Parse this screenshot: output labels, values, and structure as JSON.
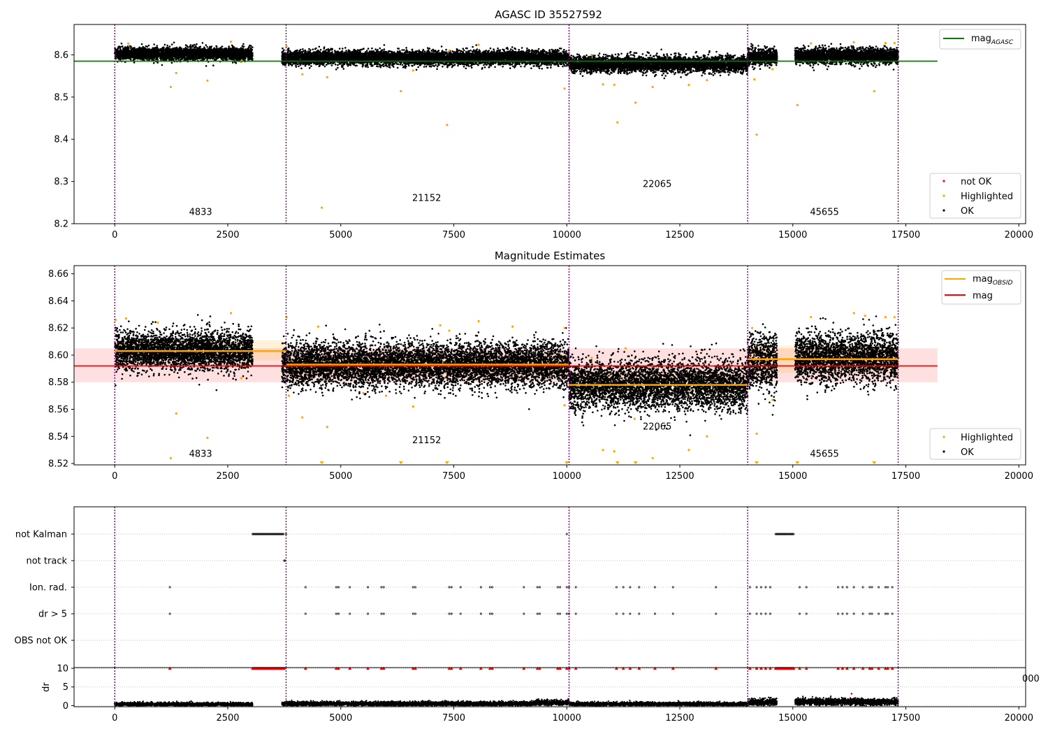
{
  "chart_data": [
    {
      "type": "scatter",
      "title": "AGASC ID 35527592",
      "xlabel": "",
      "ylabel": "",
      "xlim": [
        -900,
        20150
      ],
      "ylim": [
        8.2,
        8.672
      ],
      "xticks": [
        0,
        2500,
        5000,
        7500,
        10000,
        12500,
        15000,
        17500,
        20000
      ],
      "yticks": [
        8.2,
        8.3,
        8.4,
        8.5,
        8.6
      ],
      "ytick_labels": [
        "8.2",
        "8.3",
        "8.4",
        "8.5",
        "8.6"
      ],
      "grid": false,
      "lines": [
        {
          "name": "mag_AGASC",
          "color": "#008000",
          "x": [
            -900,
            18200
          ],
          "y": [
            8.585,
            8.585
          ]
        }
      ],
      "obsid_boundaries": [
        0,
        3790,
        10050,
        14000,
        17330
      ],
      "obsid_labels": [
        {
          "label": "4833",
          "x": 1900,
          "y": 8.221
        },
        {
          "label": "21152",
          "x": 6900,
          "y": 8.254
        },
        {
          "label": "22065",
          "x": 12000,
          "y": 8.287
        },
        {
          "label": "45655",
          "x": 15700,
          "y": 8.221
        }
      ],
      "dense_segments": [
        {
          "x0": 0,
          "x1": 3050,
          "center": 8.603,
          "spread": 0.007
        },
        {
          "x0": 3700,
          "x1": 10050,
          "center": 8.593,
          "spread": 0.008
        },
        {
          "x0": 10050,
          "x1": 14000,
          "center": 8.578,
          "spread": 0.009
        },
        {
          "x0": 14000,
          "x1": 14650,
          "center": 8.595,
          "spread": 0.01
        },
        {
          "x0": 15050,
          "x1": 17330,
          "center": 8.598,
          "spread": 0.009
        }
      ],
      "highlighted_points": [
        [
          1240,
          8.524
        ],
        [
          1360,
          8.557
        ],
        [
          2050,
          8.539
        ],
        [
          2800,
          8.583
        ],
        [
          300,
          8.627
        ],
        [
          2570,
          8.631
        ],
        [
          3800,
          8.62
        ],
        [
          4150,
          8.554
        ],
        [
          4580,
          8.238
        ],
        [
          4700,
          8.547
        ],
        [
          6330,
          8.514
        ],
        [
          7350,
          8.434
        ],
        [
          7400,
          8.61
        ],
        [
          6600,
          8.563
        ],
        [
          8050,
          8.624
        ],
        [
          9950,
          8.52
        ],
        [
          10050,
          8.605
        ],
        [
          10550,
          8.6
        ],
        [
          10800,
          8.53
        ],
        [
          11050,
          8.529
        ],
        [
          11120,
          8.44
        ],
        [
          11520,
          8.487
        ],
        [
          11900,
          8.524
        ],
        [
          12700,
          8.529
        ],
        [
          13100,
          8.54
        ],
        [
          14150,
          8.542
        ],
        [
          14200,
          8.411
        ],
        [
          14550,
          8.566
        ],
        [
          15100,
          8.481
        ],
        [
          15400,
          8.627
        ],
        [
          16350,
          8.63
        ],
        [
          16800,
          8.514
        ],
        [
          17050,
          8.628
        ],
        [
          17250,
          8.628
        ]
      ],
      "legend": {
        "placement": "top-right and bottom-right",
        "entries": [
          {
            "name": "mag_AGASC",
            "color": "#008000",
            "kind": "line"
          },
          {
            "name": "not OK",
            "color": "#ff0000",
            "kind": "point"
          },
          {
            "name": "Highlighted",
            "color": "#ffa500",
            "kind": "point"
          },
          {
            "name": "OK",
            "color": "#000000",
            "kind": "point"
          }
        ]
      }
    },
    {
      "type": "scatter",
      "title": "Magnitude Estimates",
      "xlabel": "",
      "ylabel": "",
      "xlim": [
        -900,
        20150
      ],
      "ylim": [
        8.519,
        8.666
      ],
      "xticks": [
        0,
        2500,
        5000,
        7500,
        10000,
        12500,
        15000,
        17500,
        20000
      ],
      "yticks": [
        8.52,
        8.54,
        8.56,
        8.58,
        8.6,
        8.62,
        8.64,
        8.66
      ],
      "ytick_labels": [
        "8.52",
        "8.54",
        "8.56",
        "8.58",
        "8.60",
        "8.62",
        "8.64",
        "8.66"
      ],
      "grid": false,
      "lines": [
        {
          "name": "mag",
          "color": "#ff0000",
          "x": [
            -900,
            18200
          ],
          "y": [
            8.592,
            8.592
          ]
        }
      ],
      "mag_band": {
        "color": "#ff0000",
        "x": [
          -900,
          18200
        ],
        "y": [
          8.58,
          8.605
        ]
      },
      "obsid_levels": [
        {
          "x0": 0,
          "x1": 3790,
          "mag": 8.603,
          "band": [
            8.596,
            8.611
          ]
        },
        {
          "x0": 3790,
          "x1": 10050,
          "mag": 8.593,
          "band": [
            8.585,
            8.601
          ]
        },
        {
          "x0": 10050,
          "x1": 14000,
          "mag": 8.578,
          "band": [
            8.569,
            8.587
          ]
        },
        {
          "x0": 14000,
          "x1": 17330,
          "mag": 8.597,
          "band": [
            8.587,
            8.607
          ]
        }
      ],
      "obsid_boundaries": [
        0,
        3790,
        10050,
        14000,
        17330
      ],
      "obsid_labels": [
        {
          "label": "4833",
          "x": 1900,
          "y": 8.525
        },
        {
          "label": "21152",
          "x": 6900,
          "y": 8.535
        },
        {
          "label": "22065",
          "x": 12000,
          "y": 8.545
        },
        {
          "label": "45655",
          "x": 15700,
          "y": 8.525
        }
      ],
      "dense_segments": [
        {
          "x0": 0,
          "x1": 3050,
          "center": 8.603,
          "spread": 0.007
        },
        {
          "x0": 3700,
          "x1": 10050,
          "center": 8.593,
          "spread": 0.008
        },
        {
          "x0": 10050,
          "x1": 14000,
          "center": 8.578,
          "spread": 0.009
        },
        {
          "x0": 14000,
          "x1": 14650,
          "center": 8.595,
          "spread": 0.01
        },
        {
          "x0": 15050,
          "x1": 17330,
          "center": 8.598,
          "spread": 0.009
        }
      ],
      "highlighted_points": [
        [
          20,
          8.626
        ],
        [
          250,
          8.627
        ],
        [
          950,
          8.624
        ],
        [
          1240,
          8.524
        ],
        [
          1360,
          8.557
        ],
        [
          2050,
          8.539
        ],
        [
          2570,
          8.631
        ],
        [
          2800,
          8.583
        ],
        [
          3800,
          8.628
        ],
        [
          3850,
          8.57
        ],
        [
          4150,
          8.554
        ],
        [
          4500,
          8.621
        ],
        [
          4700,
          8.547
        ],
        [
          5500,
          8.572
        ],
        [
          6000,
          8.57
        ],
        [
          6600,
          8.562
        ],
        [
          7200,
          8.622
        ],
        [
          7400,
          8.618
        ],
        [
          8050,
          8.625
        ],
        [
          8800,
          8.621
        ],
        [
          9950,
          8.62
        ],
        [
          9950,
          8.563
        ],
        [
          10550,
          8.598
        ],
        [
          10800,
          8.53
        ],
        [
          11050,
          8.529
        ],
        [
          11300,
          8.605
        ],
        [
          11500,
          8.553
        ],
        [
          11900,
          8.524
        ],
        [
          12700,
          8.53
        ],
        [
          13100,
          8.54
        ],
        [
          14100,
          8.62
        ],
        [
          14200,
          8.542
        ],
        [
          14550,
          8.567
        ],
        [
          15400,
          8.628
        ],
        [
          16350,
          8.631
        ],
        [
          16600,
          8.629
        ],
        [
          17050,
          8.628
        ],
        [
          17250,
          8.628
        ]
      ],
      "highlighted_markers": [
        [
          4580,
          8.52
        ],
        [
          6330,
          8.52
        ],
        [
          7350,
          8.52
        ],
        [
          10000,
          8.52
        ],
        [
          11120,
          8.52
        ],
        [
          11520,
          8.52
        ],
        [
          14200,
          8.52
        ],
        [
          15100,
          8.52
        ],
        [
          16800,
          8.52
        ]
      ],
      "legend": {
        "placement": "top-right and bottom-right",
        "entries": [
          {
            "name": "mag_OBSID",
            "color": "#ffa500",
            "kind": "line"
          },
          {
            "name": "mag",
            "color": "#ff0000",
            "kind": "line"
          },
          {
            "name": "Highlighted",
            "color": "#ffa500",
            "kind": "point"
          },
          {
            "name": "OK",
            "color": "#000000",
            "kind": "point"
          }
        ]
      }
    },
    {
      "type": "scatter",
      "title": "",
      "xlabel": "",
      "ylabel": "",
      "xlim": [
        -900,
        20150
      ],
      "categories": [
        "not Kalman",
        "not track",
        "Ion. rad.",
        "dr > 5",
        "OBS not OK"
      ],
      "grid": true,
      "obsid_boundaries": [
        0,
        3790,
        10050,
        14000,
        17330
      ],
      "flags": {
        "not Kalman": {
          "ranges": [
            [
              3050,
              3750
            ],
            [
              14620,
              15030
            ]
          ],
          "points": [
            3790,
            10000
          ]
        },
        "not track": {
          "ranges": [],
          "points": [
            3750,
            3770
          ]
        },
        "Ion. rad.": {
          "ranges": [],
          "points": [
            1220,
            4220,
            4900,
            4950,
            5200,
            5600,
            5900,
            5950,
            6600,
            6650,
            7400,
            7450,
            7650,
            8100,
            8300,
            8350,
            9050,
            9350,
            9400,
            9800,
            9850,
            10000,
            10050,
            10200,
            11100,
            11250,
            11400,
            11600,
            11950,
            12350,
            13300,
            14050,
            14200,
            14300,
            14400,
            14500,
            15150,
            15300,
            16000,
            16100,
            16200,
            16350,
            16550,
            16700,
            16750,
            16900,
            17050,
            17100,
            17200
          ]
        },
        "dr > 5": {
          "ranges": [],
          "points": [
            1220,
            4220,
            4900,
            4950,
            5200,
            5600,
            5900,
            5950,
            6600,
            6650,
            7400,
            7450,
            7650,
            8100,
            8300,
            8350,
            9050,
            9350,
            9400,
            9800,
            9850,
            10000,
            10050,
            10200,
            11100,
            11250,
            11400,
            11600,
            11950,
            12350,
            13300,
            14050,
            14200,
            14300,
            14400,
            14500,
            15150,
            15300,
            16000,
            16100,
            16200,
            16350,
            16550,
            16700,
            16750,
            16900,
            17050,
            17100,
            17200
          ]
        },
        "OBS not OK": {
          "ranges": [],
          "points": []
        }
      }
    },
    {
      "type": "scatter",
      "title": "",
      "xlabel": "",
      "ylabel": "dr",
      "xlim": [
        -900,
        20150
      ],
      "ylim": [
        -0.3,
        10.2
      ],
      "xticks": [
        0,
        2500,
        5000,
        7500,
        10000,
        12500,
        15000,
        17500,
        20000
      ],
      "yticks": [
        0,
        5,
        10
      ],
      "grid": true,
      "obsid_boundaries": [
        0,
        3790,
        10050,
        14000,
        17330
      ],
      "dense_segments": [
        {
          "x0": 0,
          "x1": 3050,
          "center": 0.35,
          "spread": 0.25
        },
        {
          "x0": 3700,
          "x1": 9300,
          "center": 0.5,
          "spread": 0.3
        },
        {
          "x0": 9300,
          "x1": 10050,
          "center": 0.8,
          "spread": 0.35
        },
        {
          "x0": 10050,
          "x1": 14000,
          "center": 0.4,
          "spread": 0.25
        },
        {
          "x0": 14000,
          "x1": 14650,
          "center": 0.9,
          "spread": 0.45
        },
        {
          "x0": 15050,
          "x1": 17330,
          "center": 1.0,
          "spread": 0.45
        }
      ],
      "clipped_points": {
        "value": 10,
        "ranges": [
          [
            3050,
            3750
          ],
          [
            14620,
            15030
          ]
        ],
        "points": [
          1220,
          4220,
          4900,
          4950,
          5200,
          5600,
          5900,
          5950,
          6600,
          6650,
          7400,
          7450,
          7650,
          8100,
          8300,
          8350,
          9050,
          9350,
          9400,
          9800,
          9850,
          10000,
          10050,
          10200,
          11100,
          11250,
          11400,
          11600,
          11950,
          12350,
          13300,
          14050,
          14200,
          14300,
          14400,
          14500,
          15150,
          15300,
          16000,
          16100,
          16200,
          16350,
          16550,
          16700,
          16750,
          16900,
          17050,
          17100,
          17200
        ]
      },
      "outliers": [
        [
          16300,
          3.2
        ]
      ]
    }
  ],
  "colors": {
    "ok": "#000000",
    "highlighted": "#ffa500",
    "not_ok": "#ff0000",
    "agasc_line": "#008000",
    "obsid_line": "#ffa500",
    "mag_line": "#ff0000",
    "boundary": "#800080",
    "grid": "#b0b0b0"
  },
  "legend_text": {
    "mag_agasc_main": "mag",
    "mag_agasc_sub": "AGASC",
    "mag_obsid_main": "mag",
    "mag_obsid_sub": "OBSID",
    "mag": "mag",
    "not_ok": "not OK",
    "highlighted": "Highlighted",
    "ok": "OK"
  },
  "clipped_tick_fragment": "000"
}
